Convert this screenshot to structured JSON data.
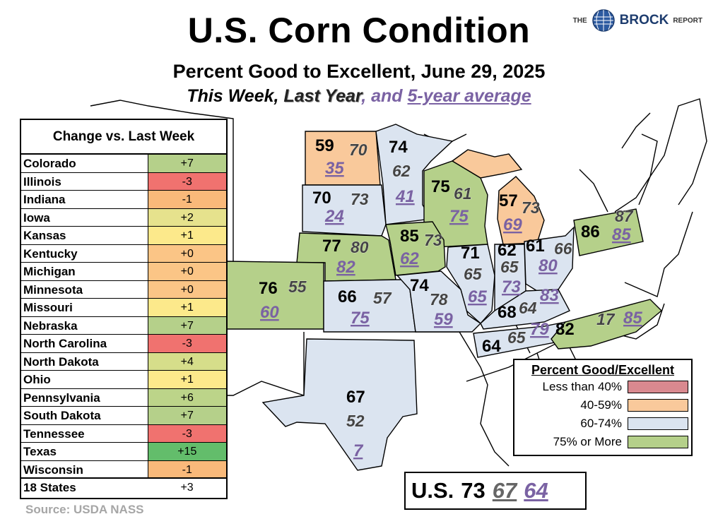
{
  "title": "U.S. Corn Condition",
  "subtitle": "Percent Good to Excellent, June 29, 2025",
  "legend_line": {
    "this_week": "This Week",
    "comma1": ",",
    "last_year": "Last Year",
    "and": ", and",
    "avg": "5-year average"
  },
  "brand": {
    "the": "THE",
    "name": "BROCK",
    "report": "REPORT"
  },
  "colors": {
    "lt40": "#d9898f",
    "r40_59": "#f9c99b",
    "r60_74": "#dbe4f0",
    "ge75": "#b5d08a",
    "avg_text": "#7a62a3"
  },
  "states": [
    {
      "id": "ND",
      "this_week": "59",
      "last_year": "70",
      "avg": "35"
    },
    {
      "id": "MN",
      "this_week": "74",
      "last_year": "62",
      "avg": "41"
    },
    {
      "id": "SD",
      "this_week": "70",
      "last_year": "73",
      "avg": "24"
    },
    {
      "id": "WI",
      "this_week": "75",
      "last_year": "61",
      "avg": "75"
    },
    {
      "id": "MI",
      "this_week": "57",
      "last_year": "73",
      "avg": "69"
    },
    {
      "id": "NE",
      "this_week": "77",
      "last_year": "80",
      "avg": "82"
    },
    {
      "id": "IA",
      "this_week": "85",
      "last_year": "73",
      "avg": "62"
    },
    {
      "id": "IL",
      "this_week": "71",
      "last_year": "65",
      "avg": "65"
    },
    {
      "id": "IN",
      "this_week": "62",
      "last_year": "65",
      "avg": "73"
    },
    {
      "id": "OH",
      "this_week": "61",
      "last_year": "66",
      "avg": "80"
    },
    {
      "id": "PA",
      "this_week": "86",
      "last_year": "87",
      "avg": "85"
    },
    {
      "id": "CO",
      "this_week": "76",
      "last_year": "55",
      "avg": "60"
    },
    {
      "id": "KS",
      "this_week": "66",
      "last_year": "57",
      "avg": "75"
    },
    {
      "id": "MO",
      "this_week": "74",
      "last_year": "78",
      "avg": "59"
    },
    {
      "id": "KY",
      "this_week": "68",
      "last_year": "64",
      "avg": "83"
    },
    {
      "id": "TN",
      "this_week": "64",
      "last_year": "65",
      "avg": "79"
    },
    {
      "id": "NC",
      "this_week": "82",
      "last_year": "17",
      "avg": "85"
    },
    {
      "id": "TX",
      "this_week": "67",
      "last_year": "52",
      "avg": "7"
    }
  ],
  "change_table": {
    "header": "Change vs. Last Week",
    "rows": [
      {
        "state": "Colorado",
        "change": "+7",
        "color": "#b5d08a"
      },
      {
        "state": "Illinois",
        "change": "-3",
        "color": "#f0726f"
      },
      {
        "state": "Indiana",
        "change": "-1",
        "color": "#f9b97a"
      },
      {
        "state": "Iowa",
        "change": "+2",
        "color": "#e6e28d"
      },
      {
        "state": "Kansas",
        "change": "+1",
        "color": "#fce98b"
      },
      {
        "state": "Kentucky",
        "change": "+0",
        "color": "#fbc586"
      },
      {
        "state": "Michigan",
        "change": "+0",
        "color": "#fbc586"
      },
      {
        "state": "Minnesota",
        "change": "+0",
        "color": "#fbc586"
      },
      {
        "state": "Missouri",
        "change": "+1",
        "color": "#fce98b"
      },
      {
        "state": "Nebraska",
        "change": "+7",
        "color": "#b5d08a"
      },
      {
        "state": "North Carolina",
        "change": "-3",
        "color": "#f0726f"
      },
      {
        "state": "North Dakota",
        "change": "+4",
        "color": "#d6de8a"
      },
      {
        "state": "Ohio",
        "change": "+1",
        "color": "#fce98b"
      },
      {
        "state": "Pennsylvania",
        "change": "+6",
        "color": "#bcd489"
      },
      {
        "state": "South Dakota",
        "change": "+7",
        "color": "#b5d08a"
      },
      {
        "state": "Tennessee",
        "change": "-3",
        "color": "#f0726f"
      },
      {
        "state": "Texas",
        "change": "+15",
        "color": "#63bd6b"
      },
      {
        "state": "Wisconsin",
        "change": "-1",
        "color": "#f9b97a"
      }
    ],
    "total": {
      "label": "18 States",
      "change": "+3"
    }
  },
  "key": {
    "title": "Percent Good/Excellent",
    "items": [
      {
        "label": "Less than 40%",
        "color": "#d9898f"
      },
      {
        "label": "40-59%",
        "color": "#f9c99b"
      },
      {
        "label": "60-74%",
        "color": "#dbe4f0"
      },
      {
        "label": "75% or More",
        "color": "#b5d08a"
      }
    ]
  },
  "us": {
    "label": "U.S.",
    "this_week": "73",
    "last_year": "67",
    "avg": "64"
  },
  "source": "Source: USDA NASS"
}
